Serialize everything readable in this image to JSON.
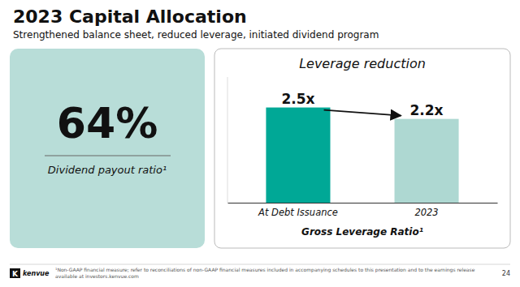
{
  "title": "2023 Capital Allocation",
  "subtitle": "Strengthened balance sheet, reduced leverage, initiated dividend program",
  "highlight": {
    "value": 64,
    "label": "64%",
    "caption": "Dividend payout ratio¹",
    "color": "#b8ddd8"
  },
  "chart_data": {
    "type": "bar",
    "title": "Leverage reduction",
    "categories": [
      "At Debt Issuance",
      "2023"
    ],
    "values": [
      2.5,
      2.2
    ],
    "value_labels": [
      "2.5x",
      "2.2x"
    ],
    "colors": [
      "#00a896",
      "#aed8d2"
    ],
    "xlabel": "Gross Leverage Ratio¹",
    "ylim": [
      0,
      3.3
    ],
    "data_labels": true,
    "tick_labels": "x",
    "grid": false
  },
  "logo": {
    "mark": "K",
    "name": "kenvue"
  },
  "footnote": "¹Non-GAAP financial measure; refer to reconciliations of non-GAAP financial measures included in accompanying schedules to this presentation and to the earnings release available at investors.kenvue.com",
  "page_number": "24"
}
